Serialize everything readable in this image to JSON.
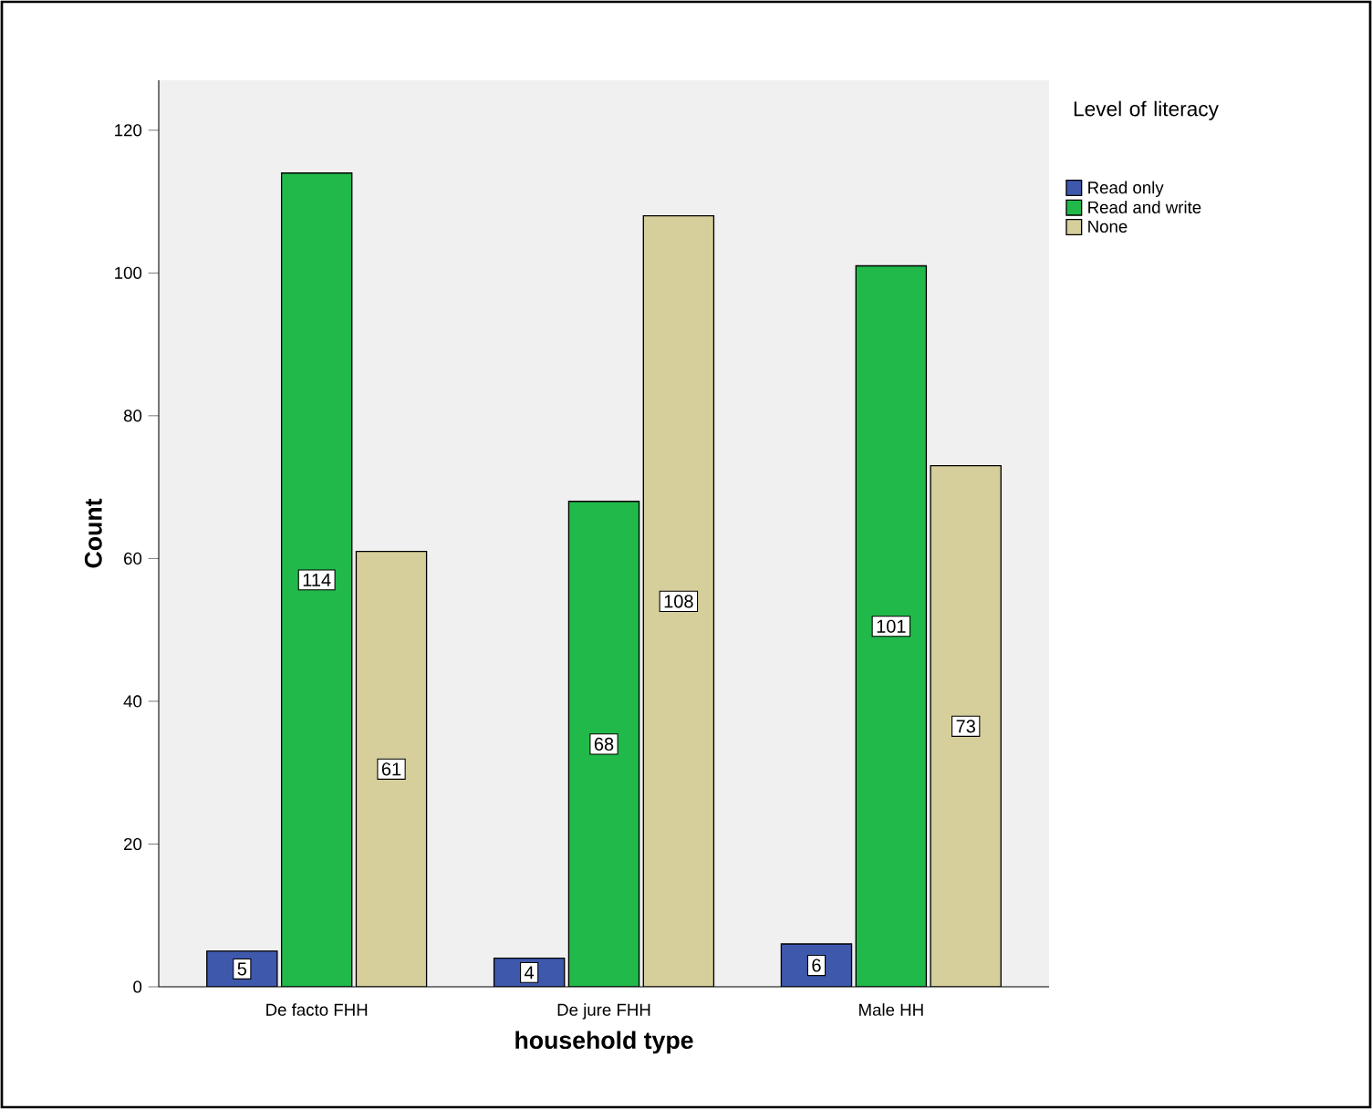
{
  "chart_data": {
    "type": "bar",
    "xlabel": "household type",
    "ylabel": "Count",
    "legend_title": "Level of literacy",
    "categories": [
      "De facto FHH",
      "De jure FHH",
      "Male HH"
    ],
    "series": [
      {
        "name": "Read only",
        "color": "#3e58ac",
        "values": [
          5,
          4,
          6
        ]
      },
      {
        "name": "Read and write",
        "color": "#21b94a",
        "values": [
          114,
          68,
          101
        ]
      },
      {
        "name": "None",
        "color": "#d6cf9b",
        "values": [
          61,
          108,
          73
        ]
      }
    ],
    "ylim": [
      0,
      127
    ],
    "yticks": [
      0,
      20,
      40,
      60,
      80,
      100,
      120
    ],
    "data_labels": true,
    "legend": "top right",
    "grid": false
  }
}
